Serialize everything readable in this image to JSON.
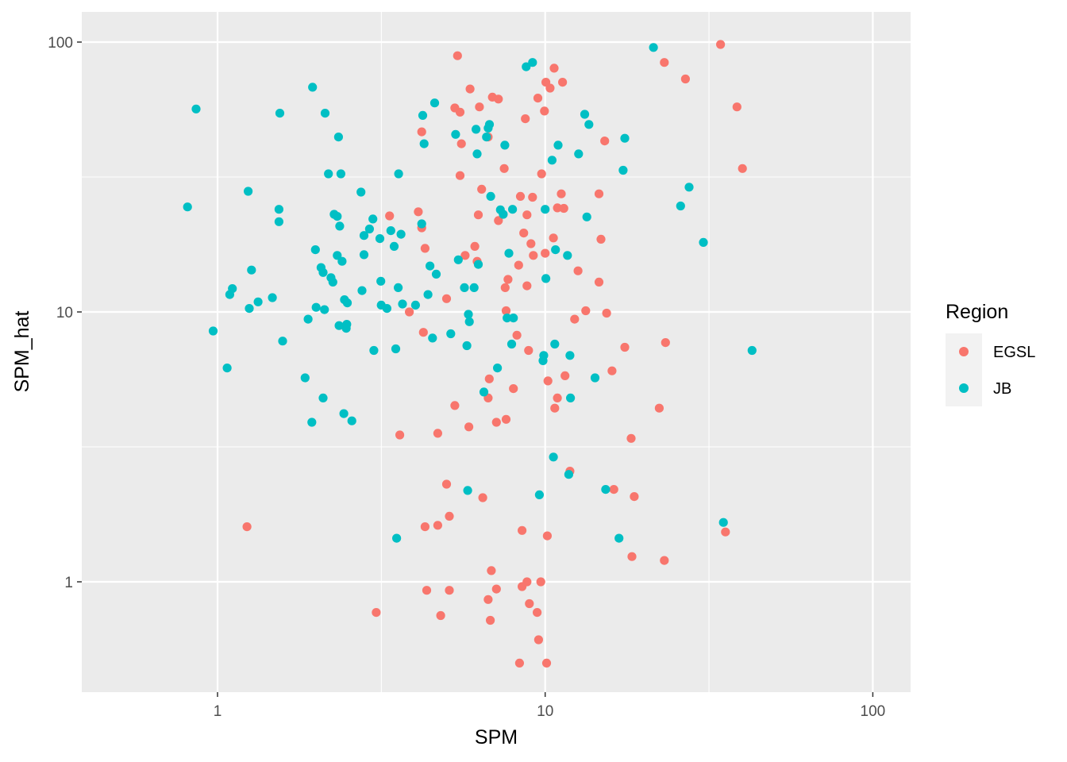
{
  "chart_data": {
    "type": "scatter",
    "xlabel": "SPM",
    "ylabel": "SPM_hat",
    "x_scale": "log10",
    "y_scale": "log10",
    "xlim": [
      0.4,
      140
    ],
    "ylim": [
      0.45,
      120
    ],
    "x_ticks": [
      1,
      10,
      100
    ],
    "y_ticks": [
      1,
      10,
      100
    ],
    "x_tick_labels": [
      "1",
      "10",
      "100"
    ],
    "y_tick_labels": [
      "1",
      "10",
      "100"
    ],
    "grid": true,
    "legend": {
      "title": "Region",
      "position": "right"
    },
    "colors": {
      "EGSL": "#F8766D",
      "JB": "#00BFC4",
      "panel": "#EBEBEB",
      "grid": "#FFFFFF"
    },
    "series": [
      {
        "name": "EGSL",
        "color": "#F8766D",
        "points": [
          [
            1.23,
            1.6
          ],
          [
            3.05,
            0.77
          ],
          [
            3.35,
            22.7
          ],
          [
            3.6,
            3.5
          ],
          [
            3.85,
            10
          ],
          [
            4.1,
            23.5
          ],
          [
            4.2,
            20.5
          ],
          [
            4.2,
            46.5
          ],
          [
            4.25,
            8.4
          ],
          [
            4.3,
            17.2
          ],
          [
            4.3,
            1.6
          ],
          [
            4.35,
            0.93
          ],
          [
            4.7,
            1.62
          ],
          [
            4.7,
            3.55
          ],
          [
            4.8,
            0.75
          ],
          [
            5.0,
            11.2
          ],
          [
            5.0,
            2.3
          ],
          [
            5.1,
            1.75
          ],
          [
            5.1,
            0.93
          ],
          [
            5.3,
            4.5
          ],
          [
            5.3,
            57
          ],
          [
            5.4,
            89
          ],
          [
            5.5,
            55
          ],
          [
            5.5,
            32
          ],
          [
            5.55,
            42
          ],
          [
            5.7,
            16.2
          ],
          [
            5.85,
            3.75
          ],
          [
            5.9,
            67
          ],
          [
            6.1,
            17.5
          ],
          [
            6.2,
            15.4
          ],
          [
            6.25,
            22.9
          ],
          [
            6.3,
            57.5
          ],
          [
            6.4,
            28.5
          ],
          [
            6.45,
            2.05
          ],
          [
            6.7,
            0.86
          ],
          [
            6.7,
            44.5
          ],
          [
            6.7,
            4.8
          ],
          [
            6.75,
            5.65
          ],
          [
            6.8,
            0.72
          ],
          [
            6.85,
            1.1
          ],
          [
            6.9,
            62.5
          ],
          [
            7.1,
            0.94
          ],
          [
            7.1,
            3.9
          ],
          [
            7.2,
            61.5
          ],
          [
            7.2,
            21.8
          ],
          [
            7.5,
            34
          ],
          [
            7.55,
            12.3
          ],
          [
            7.6,
            10.1
          ],
          [
            7.6,
            4.0
          ],
          [
            7.7,
            13.2
          ],
          [
            8.0,
            5.2
          ],
          [
            8.2,
            8.2
          ],
          [
            8.3,
            14.9
          ],
          [
            8.35,
            0.5
          ],
          [
            8.4,
            26.8
          ],
          [
            8.5,
            1.55
          ],
          [
            8.5,
            0.96
          ],
          [
            8.6,
            19.6
          ],
          [
            8.7,
            52
          ],
          [
            8.8,
            12.5
          ],
          [
            8.8,
            22.9
          ],
          [
            8.8,
            1.0
          ],
          [
            8.9,
            7.2
          ],
          [
            8.95,
            0.83
          ],
          [
            9.05,
            17.9
          ],
          [
            9.15,
            26.6
          ],
          [
            9.2,
            16.2
          ],
          [
            9.45,
            0.77
          ],
          [
            9.5,
            62
          ],
          [
            9.55,
            0.61
          ],
          [
            9.7,
            1.0
          ],
          [
            9.75,
            32.5
          ],
          [
            9.95,
            55.5
          ],
          [
            10.0,
            16.5
          ],
          [
            10.05,
            71
          ],
          [
            10.1,
            0.5
          ],
          [
            10.15,
            1.48
          ],
          [
            10.2,
            5.55
          ],
          [
            10.35,
            67.5
          ],
          [
            10.6,
            18.8
          ],
          [
            10.65,
            80
          ],
          [
            10.7,
            4.4
          ],
          [
            10.9,
            4.8
          ],
          [
            10.9,
            24.3
          ],
          [
            11.2,
            27.4
          ],
          [
            11.3,
            71
          ],
          [
            11.4,
            24.2
          ],
          [
            11.5,
            5.8
          ],
          [
            11.9,
            2.57
          ],
          [
            12.3,
            9.4
          ],
          [
            12.6,
            14.2
          ],
          [
            13.3,
            10.1
          ],
          [
            14.6,
            12.9
          ],
          [
            14.6,
            27.4
          ],
          [
            14.8,
            18.6
          ],
          [
            15.2,
            43
          ],
          [
            15.4,
            9.9
          ],
          [
            16,
            6.05
          ],
          [
            16.2,
            2.2
          ],
          [
            17.5,
            7.4
          ],
          [
            18.3,
            3.4
          ],
          [
            18.4,
            1.24
          ],
          [
            18.7,
            2.07
          ],
          [
            22.3,
            4.4
          ],
          [
            23.1,
            1.2
          ],
          [
            23.1,
            84
          ],
          [
            23.3,
            7.7
          ],
          [
            26.8,
            73
          ],
          [
            34.3,
            98
          ],
          [
            35.5,
            1.53
          ],
          [
            38.5,
            57.5
          ],
          [
            40,
            34
          ]
        ]
      },
      {
        "name": "JB",
        "color": "#00BFC4",
        "points": [
          [
            0.81,
            24.5
          ],
          [
            0.86,
            56.5
          ],
          [
            0.97,
            8.5
          ],
          [
            1.07,
            6.2
          ],
          [
            1.09,
            11.6
          ],
          [
            1.11,
            12.2
          ],
          [
            1.24,
            28
          ],
          [
            1.25,
            10.3
          ],
          [
            1.27,
            14.3
          ],
          [
            1.33,
            10.9
          ],
          [
            1.47,
            11.3
          ],
          [
            1.54,
            24
          ],
          [
            1.54,
            21.6
          ],
          [
            1.55,
            54.5
          ],
          [
            1.58,
            7.8
          ],
          [
            1.85,
            5.7
          ],
          [
            1.89,
            9.4
          ],
          [
            1.94,
            3.9
          ],
          [
            1.95,
            68
          ],
          [
            1.99,
            17
          ],
          [
            2.0,
            10.4
          ],
          [
            2.07,
            14.6
          ],
          [
            2.1,
            14
          ],
          [
            2.1,
            4.8
          ],
          [
            2.12,
            10.2
          ],
          [
            2.13,
            54.5
          ],
          [
            2.18,
            32.5
          ],
          [
            2.22,
            13.4
          ],
          [
            2.25,
            12.9
          ],
          [
            2.27,
            23
          ],
          [
            2.32,
            16.2
          ],
          [
            2.32,
            22.6
          ],
          [
            2.34,
            44.5
          ],
          [
            2.35,
            8.9
          ],
          [
            2.36,
            20.8
          ],
          [
            2.38,
            32.5
          ],
          [
            2.4,
            15.4
          ],
          [
            2.43,
            4.2
          ],
          [
            2.44,
            11.1
          ],
          [
            2.47,
            8.7
          ],
          [
            2.48,
            9.0
          ],
          [
            2.49,
            10.8
          ],
          [
            2.57,
            3.95
          ],
          [
            2.74,
            27.8
          ],
          [
            2.76,
            12
          ],
          [
            2.8,
            16.3
          ],
          [
            2.8,
            19.2
          ],
          [
            2.91,
            20.3
          ],
          [
            2.98,
            22.1
          ],
          [
            3.0,
            7.2
          ],
          [
            3.13,
            18.7
          ],
          [
            3.15,
            13
          ],
          [
            3.16,
            10.6
          ],
          [
            3.29,
            10.3
          ],
          [
            3.38,
            20
          ],
          [
            3.46,
            17.5
          ],
          [
            3.5,
            7.3
          ],
          [
            3.52,
            1.45
          ],
          [
            3.56,
            12.3
          ],
          [
            3.57,
            32.5
          ],
          [
            3.63,
            19.4
          ],
          [
            3.67,
            10.7
          ],
          [
            4.02,
            10.6
          ],
          [
            4.2,
            21.2
          ],
          [
            4.23,
            53.5
          ],
          [
            4.27,
            42
          ],
          [
            4.39,
            11.6
          ],
          [
            4.45,
            14.8
          ],
          [
            4.53,
            8.0
          ],
          [
            4.6,
            59.5
          ],
          [
            4.65,
            13.8
          ],
          [
            5.15,
            8.3
          ],
          [
            5.33,
            45.5
          ],
          [
            5.43,
            15.6
          ],
          [
            5.67,
            12.3
          ],
          [
            5.77,
            7.5
          ],
          [
            5.8,
            2.18
          ],
          [
            5.83,
            9.8
          ],
          [
            5.87,
            9.2
          ],
          [
            6.07,
            12.3
          ],
          [
            6.15,
            47.5
          ],
          [
            6.2,
            38.5
          ],
          [
            6.25,
            15
          ],
          [
            6.5,
            5.05
          ],
          [
            6.62,
            44.5
          ],
          [
            6.7,
            48
          ],
          [
            6.76,
            49.5
          ],
          [
            6.82,
            26.8
          ],
          [
            7.15,
            6.2
          ],
          [
            7.3,
            23.9
          ],
          [
            7.45,
            23
          ],
          [
            7.53,
            41.5
          ],
          [
            7.65,
            9.5
          ],
          [
            7.75,
            16.5
          ],
          [
            7.9,
            7.6
          ],
          [
            7.95,
            24
          ],
          [
            8.0,
            9.5
          ],
          [
            8.75,
            81
          ],
          [
            9.15,
            84
          ],
          [
            9.6,
            2.1
          ],
          [
            9.85,
            6.6
          ],
          [
            9.9,
            6.9
          ],
          [
            10.0,
            24
          ],
          [
            10.05,
            13.3
          ],
          [
            10.5,
            36.5
          ],
          [
            10.6,
            2.9
          ],
          [
            10.7,
            7.6
          ],
          [
            10.75,
            17
          ],
          [
            10.95,
            41.5
          ],
          [
            11.7,
            16.2
          ],
          [
            11.8,
            2.5
          ],
          [
            11.9,
            6.9
          ],
          [
            11.95,
            4.8
          ],
          [
            12.65,
            38.5
          ],
          [
            13.2,
            54
          ],
          [
            13.4,
            22.5
          ],
          [
            13.6,
            49.5
          ],
          [
            14.2,
            5.7
          ],
          [
            15.3,
            2.2
          ],
          [
            16.8,
            1.45
          ],
          [
            17.3,
            33.5
          ],
          [
            17.5,
            44
          ],
          [
            21.4,
            95.5
          ],
          [
            25.9,
            24.7
          ],
          [
            27.5,
            29
          ],
          [
            30.4,
            18.1
          ],
          [
            35,
            1.66
          ],
          [
            42.8,
            7.2
          ]
        ]
      }
    ]
  }
}
